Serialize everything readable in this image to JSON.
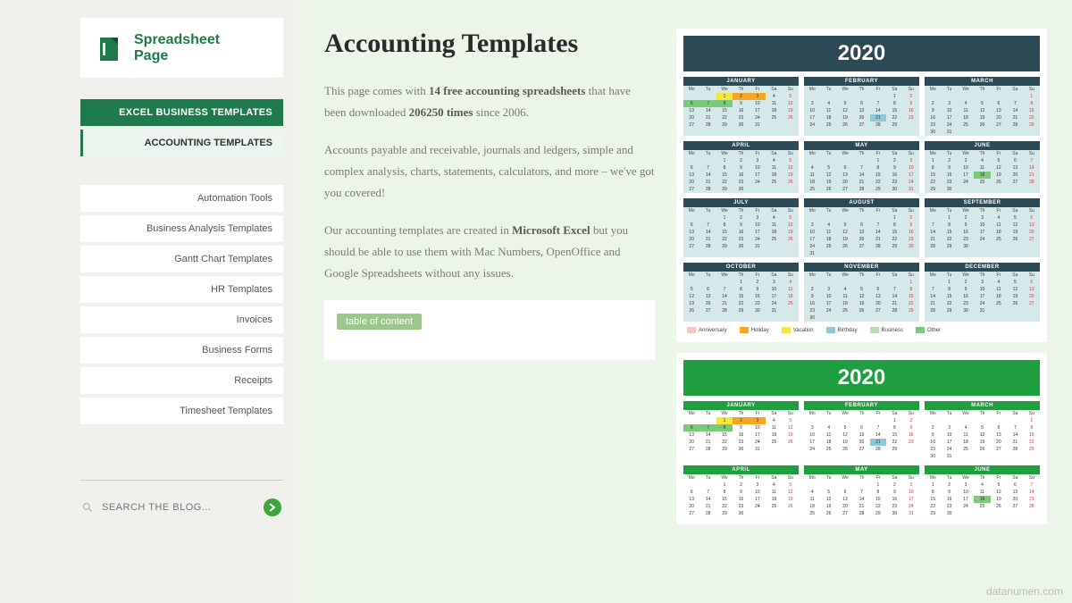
{
  "logo": {
    "line1": "Spreadsheet",
    "line2": "Page"
  },
  "nav": {
    "header": "EXCEL BUSINESS TEMPLATES",
    "active": "ACCOUNTING TEMPLATES",
    "items": [
      "Automation Tools",
      "Business Analysis Templates",
      "Gantt Chart Templates",
      "HR Templates",
      "Invoices",
      "Business Forms",
      "Receipts",
      "Timesheet Templates"
    ]
  },
  "search": {
    "placeholder": "SEARCH THE BLOG..."
  },
  "title": "Accounting Templates",
  "para1_a": "This page comes with ",
  "para1_b": "14 free accounting spreadsheets",
  "para1_c": " that have been downloaded ",
  "para1_d": "206250 times",
  "para1_e": " since 2006.",
  "para2": "Accounts payable and receivable, journals and ledgers, simple and complex analysis, charts, statements, calculators, and more – we've got you covered!",
  "para3_a": "Our accounting templates are created in ",
  "para3_b": "Microsoft Excel",
  "para3_c": " but you should be able to use them with Mac Numbers, OpenOffice and Google Spreadsheets without any issues.",
  "toc_label": "table of content",
  "watermark": "datanumen.com",
  "dow": [
    "Mo",
    "Tu",
    "We",
    "Th",
    "Fr",
    "Sa",
    "Su"
  ],
  "months": [
    "JANUARY",
    "FEBRUARY",
    "MARCH",
    "APRIL",
    "MAY",
    "JUNE",
    "JULY",
    "AUGUST",
    "SEPTEMBER",
    "OCTOBER",
    "NOVEMBER",
    "DECEMBER"
  ],
  "month_data": [
    {
      "start": 2,
      "len": 31
    },
    {
      "start": 5,
      "len": 29
    },
    {
      "start": 6,
      "len": 31
    },
    {
      "start": 2,
      "len": 30
    },
    {
      "start": 4,
      "len": 31
    },
    {
      "start": 0,
      "len": 30
    },
    {
      "start": 2,
      "len": 31
    },
    {
      "start": 5,
      "len": 31
    },
    {
      "start": 1,
      "len": 30
    },
    {
      "start": 3,
      "len": 31
    },
    {
      "start": 6,
      "len": 30
    },
    {
      "start": 1,
      "len": 31
    }
  ],
  "highlights": {
    "0": {
      "1": "hl-y",
      "2": "hl-o",
      "3": "hl-o",
      "6": "hl-g",
      "7": "hl-g",
      "8": "hl-g"
    },
    "1": {
      "21": "hl-b"
    },
    "5": {
      "18": "hl-g"
    }
  },
  "calendars": [
    {
      "year": "2020",
      "year_bg": "#2b4a56",
      "month_hdr_bg": "#2b4a56",
      "month_bg": "#d5e8ea",
      "show_legend": true,
      "rows": 4
    },
    {
      "year": "2020",
      "year_bg": "#1e9e3e",
      "month_hdr_bg": "#1e9e3e",
      "month_bg": "#ffffff",
      "show_legend": false,
      "rows": 2
    }
  ],
  "legend": [
    {
      "label": "Anniversary",
      "color": "#f4c6c6"
    },
    {
      "label": "Holiday",
      "color": "#f5a623"
    },
    {
      "label": "Vacation",
      "color": "#f5e642"
    },
    {
      "label": "Birthday",
      "color": "#8ec9d9"
    },
    {
      "label": "Business",
      "color": "#c0d9b0"
    },
    {
      "label": "Other",
      "color": "#7cc97c"
    }
  ],
  "colors": {
    "brand": "#1e7a4a",
    "page_bg": "#f0f0ec",
    "main_bg": "#ecf6e8"
  }
}
